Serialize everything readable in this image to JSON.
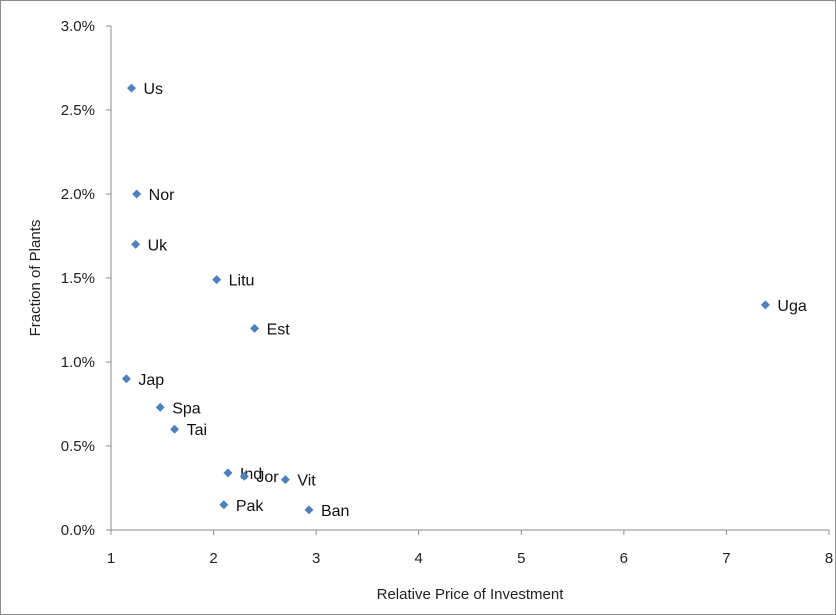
{
  "chart_data": {
    "type": "scatter",
    "title": "",
    "xlabel": "Relative Price of Investment",
    "ylabel": "Fraction of Plants",
    "xlim": [
      1,
      8
    ],
    "ylim": [
      0.0,
      3.0
    ],
    "x_ticks": [
      "1",
      "2",
      "3",
      "4",
      "5",
      "6",
      "7",
      "8"
    ],
    "y_ticks": [
      "0.0%",
      "0.5%",
      "1.0%",
      "1.5%",
      "2.0%",
      "2.5%",
      "3.0%"
    ],
    "grid": false,
    "legend": "none",
    "marker_color": "#4f81bd",
    "points": [
      {
        "label": "Us",
        "x": 1.2,
        "y": 2.63
      },
      {
        "label": "Nor",
        "x": 1.25,
        "y": 2.0
      },
      {
        "label": "Uk",
        "x": 1.24,
        "y": 1.7
      },
      {
        "label": "Litu",
        "x": 2.03,
        "y": 1.49
      },
      {
        "label": "Est",
        "x": 2.4,
        "y": 1.2
      },
      {
        "label": "Uga",
        "x": 7.38,
        "y": 1.34
      },
      {
        "label": "Jap",
        "x": 1.15,
        "y": 0.9
      },
      {
        "label": "Spa",
        "x": 1.48,
        "y": 0.73
      },
      {
        "label": "Tai",
        "x": 1.62,
        "y": 0.6
      },
      {
        "label": "Ind",
        "x": 2.14,
        "y": 0.34
      },
      {
        "label": "Jor",
        "x": 2.3,
        "y": 0.32
      },
      {
        "label": "Vit",
        "x": 2.7,
        "y": 0.3
      },
      {
        "label": "Pak",
        "x": 2.1,
        "y": 0.15
      },
      {
        "label": "Ban",
        "x": 2.93,
        "y": 0.12
      }
    ]
  }
}
